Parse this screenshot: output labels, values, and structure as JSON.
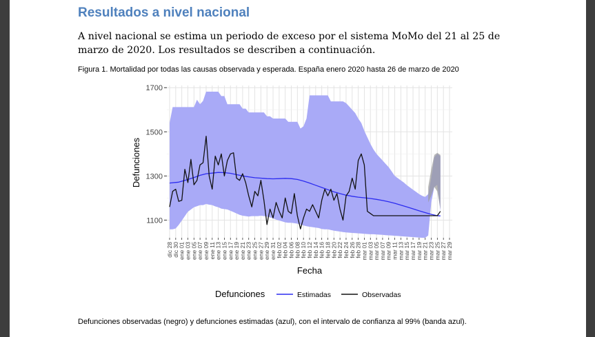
{
  "document": {
    "heading": "Resultados a nivel nacional",
    "paragraph": "A nivel nacional se estima un periodo de exceso por el sistema MoMo del 21 al 25 de marzo de 2020. Los resultados se describen a continuación.",
    "figure_caption": "Figura 1. Mortalidad por todas las causas observada y esperada. España enero 2020 hasta 26 de marzo de 2020",
    "footer_note": "Defunciones observadas (negro) y defunciones estimadas (azul), con el intervalo de confianza al 99% (banda azul)."
  },
  "colors": {
    "heading": "#4f81bd",
    "band": "#a9aaf7",
    "estimated_line": "#2b2bf0",
    "observed_line": "#111111",
    "panel_bg": "#ffffff",
    "grid": "#e3e3e3"
  },
  "chart_data": {
    "type": "line",
    "title": "",
    "xlabel": "Fecha",
    "ylabel": "Defunciones",
    "x_start_day": 0,
    "x_end_day": 92,
    "ylim": [
      1020,
      1710
    ],
    "yticks": [
      1100,
      1300,
      1500,
      1700
    ],
    "xtick_labels": [
      "dic 28",
      "dic 30",
      "ene 01",
      "ene 03",
      "ene 05",
      "ene 07",
      "ene 09",
      "ene 11",
      "ene 13",
      "ene 15",
      "ene 17",
      "ene 19",
      "ene 21",
      "ene 23",
      "ene 25",
      "ene 27",
      "ene 29",
      "ene 31",
      "feb 02",
      "feb 04",
      "feb 06",
      "feb 08",
      "feb 10",
      "feb 12",
      "feb 14",
      "feb 16",
      "feb 18",
      "feb 20",
      "feb 22",
      "feb 24",
      "feb 26",
      "feb 28",
      "mar 01",
      "mar 03",
      "mar 05",
      "mar 07",
      "mar 09",
      "mar 11",
      "mar 13",
      "mar 15",
      "mar 17",
      "mar 19",
      "mar 21",
      "mar 23",
      "mar 25",
      "mar 27",
      "mar 29"
    ],
    "legend": {
      "title": "Defunciones",
      "position": "bottom",
      "entries": [
        "Estimadas",
        "Observadas"
      ]
    },
    "series": [
      {
        "name": "Estimadas",
        "x": [
          0,
          3,
          5,
          8,
          10,
          12,
          14,
          16,
          18,
          20,
          22,
          24,
          26,
          28,
          30,
          32,
          34,
          36,
          38,
          40,
          42,
          44,
          46,
          48,
          50,
          52,
          54,
          56,
          58,
          60,
          62,
          64,
          66,
          68,
          70,
          72,
          74,
          76,
          78,
          80,
          82,
          84,
          86,
          88,
          89
        ],
        "values": [
          1268,
          1272,
          1280,
          1293,
          1303,
          1310,
          1313,
          1316,
          1315,
          1312,
          1306,
          1300,
          1296,
          1292,
          1290,
          1288,
          1287,
          1288,
          1289,
          1288,
          1284,
          1277,
          1268,
          1258,
          1248,
          1238,
          1228,
          1220,
          1213,
          1208,
          1204,
          1201,
          1198,
          1194,
          1189,
          1183,
          1176,
          1168,
          1160,
          1151,
          1142,
          1134,
          1126,
          1120,
          1119
        ]
      },
      {
        "name": "Observadas",
        "x": [
          0,
          1,
          2,
          3,
          4,
          5,
          6,
          7,
          8,
          9,
          10,
          11,
          12,
          13,
          14,
          15,
          16,
          17,
          18,
          19,
          20,
          21,
          22,
          23,
          24,
          25,
          26,
          27,
          28,
          29,
          30,
          31,
          32,
          33,
          34,
          35,
          36,
          37,
          38,
          39,
          40,
          41,
          42,
          43,
          44,
          45,
          46,
          47,
          48,
          49,
          50,
          51,
          52,
          53,
          54,
          55,
          56,
          57,
          58,
          59,
          60,
          61,
          62,
          63,
          64,
          65,
          66,
          67,
          68,
          69,
          70,
          71,
          72,
          73,
          74,
          75,
          76,
          77,
          78,
          79,
          80,
          81,
          82,
          83,
          84,
          85,
          86,
          87,
          88,
          89
        ],
        "values": [
          1160,
          1230,
          1240,
          1185,
          1190,
          1330,
          1270,
          1375,
          1260,
          1280,
          1350,
          1360,
          1480,
          1300,
          1240,
          1390,
          1350,
          1400,
          1300,
          1370,
          1400,
          1405,
          1290,
          1280,
          1310,
          1270,
          1210,
          1160,
          1230,
          1210,
          1280,
          1190,
          1080,
          1150,
          1110,
          1180,
          1140,
          1110,
          1200,
          1140,
          1130,
          1220,
          1120,
          1060,
          1110,
          1150,
          1140,
          1170,
          1140,
          1110,
          1190,
          1240,
          1210,
          1240,
          1190,
          1220,
          1150,
          1100,
          1210,
          1230,
          1290,
          1240,
          1370,
          1400,
          1350,
          1140,
          1130,
          1120,
          1120,
          1120,
          1120,
          1120,
          1120,
          1120,
          1120,
          1120,
          1120,
          1120,
          1120,
          1120,
          1120,
          1120,
          1120,
          1120,
          1120,
          1120,
          1120,
          1120,
          1120,
          1140
        ]
      }
    ],
    "confidence_band_99": {
      "x": [
        0,
        1,
        2,
        3,
        4,
        5,
        6,
        7,
        8,
        9,
        10,
        11,
        12,
        13,
        14,
        15,
        16,
        17,
        18,
        19,
        20,
        21,
        22,
        23,
        24,
        25,
        26,
        27,
        28,
        29,
        30,
        31,
        32,
        33,
        34,
        35,
        36,
        37,
        38,
        39,
        40,
        41,
        42,
        43,
        44,
        45,
        46,
        47,
        48,
        49,
        50,
        51,
        52,
        53,
        54,
        55,
        56,
        57,
        58,
        59,
        60,
        61,
        62,
        63,
        64,
        65,
        66,
        67,
        68,
        69,
        70,
        71,
        72,
        73,
        74,
        75,
        76,
        77,
        78,
        79,
        80,
        81,
        82,
        83,
        84,
        85,
        86,
        87,
        88,
        89
      ],
      "upper": [
        1540,
        1612,
        1612,
        1612,
        1612,
        1612,
        1612,
        1612,
        1612,
        1645,
        1625,
        1640,
        1682,
        1682,
        1682,
        1682,
        1682,
        1662,
        1662,
        1625,
        1625,
        1625,
        1625,
        1625,
        1605,
        1605,
        1588,
        1588,
        1588,
        1588,
        1588,
        1588,
        1570,
        1570,
        1560,
        1560,
        1560,
        1560,
        1560,
        1545,
        1545,
        1545,
        1545,
        1515,
        1525,
        1560,
        1665,
        1665,
        1665,
        1665,
        1665,
        1665,
        1665,
        1638,
        1638,
        1638,
        1638,
        1638,
        1630,
        1615,
        1600,
        1585,
        1560,
        1540,
        1505,
        1475,
        1445,
        1420,
        1400,
        1385,
        1370,
        1355,
        1340,
        1320,
        1300,
        1290,
        1280,
        1270,
        1258,
        1248,
        1238,
        1228,
        1218,
        1210,
        1205,
        1218,
        1290,
        1385,
        1400,
        1390
      ],
      "lower": [
        1058,
        1058,
        1062,
        1078,
        1098,
        1118,
        1138,
        1148,
        1158,
        1163,
        1168,
        1168,
        1173,
        1170,
        1168,
        1162,
        1158,
        1152,
        1150,
        1148,
        1142,
        1136,
        1130,
        1124,
        1120,
        1118,
        1116,
        1118,
        1118,
        1118,
        1120,
        1118,
        1116,
        1112,
        1108,
        1102,
        1098,
        1094,
        1090,
        1088,
        1088,
        1086,
        1084,
        1080,
        1076,
        1072,
        1070,
        1068,
        1066,
        1064,
        1060,
        1058,
        1058,
        1055,
        1052,
        1050,
        1048,
        1046,
        1044,
        1043,
        1042,
        1041,
        1040,
        1039,
        1038,
        1037,
        1036,
        1036,
        1035,
        1034,
        1033,
        1032,
        1031,
        1030,
        1029,
        1028,
        1027,
        1026,
        1025,
        1024,
        1023,
        1022,
        1021,
        1020,
        1020,
        1030,
        1180,
        1250,
        1260,
        1140
      ]
    }
  }
}
